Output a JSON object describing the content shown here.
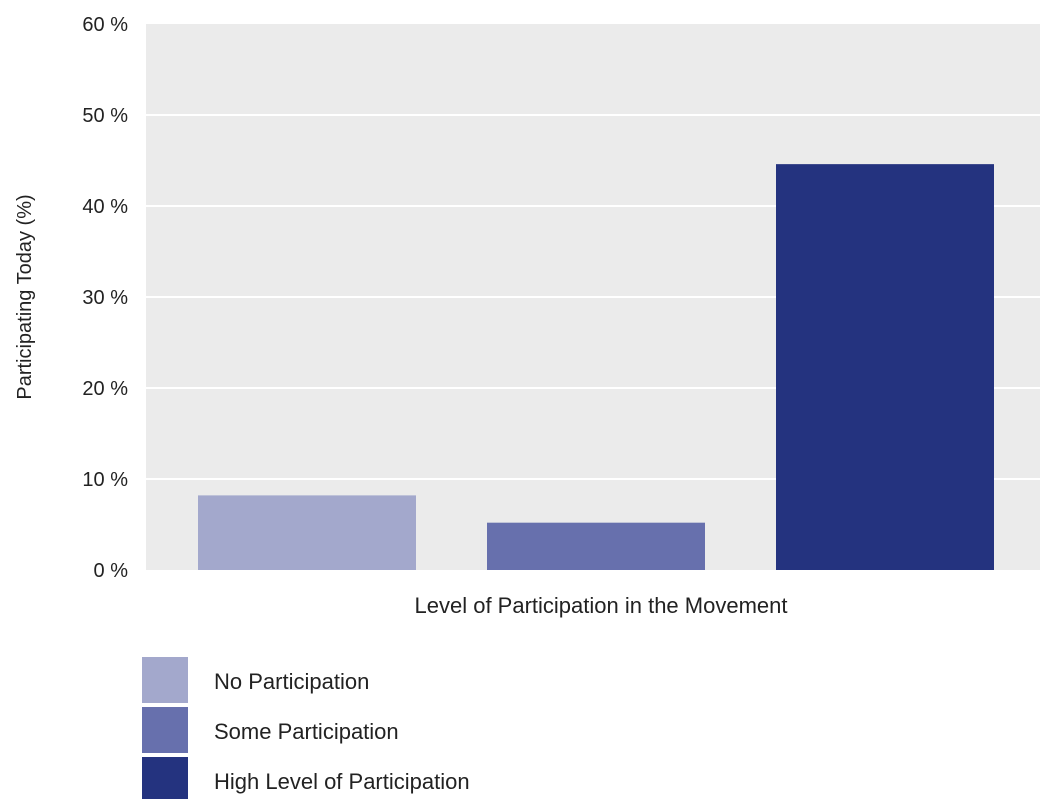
{
  "chart_data": {
    "type": "bar",
    "title": "",
    "xlabel": "Level of Participation in the Movement",
    "ylabel": "Participating Today (%)",
    "ylim": [
      0,
      60
    ],
    "yticks": [
      0,
      10,
      20,
      30,
      40,
      50,
      60
    ],
    "ytick_labels": [
      "0 %",
      "10 %",
      "20 %",
      "30 %",
      "40 %",
      "50 %",
      "60 %"
    ],
    "grid": true,
    "legend_position": "bottom-left",
    "categories": [
      "No Participation",
      "Some Participation",
      "High Level of Participation"
    ],
    "values": [
      8.2,
      5.2,
      44.6
    ],
    "colors": [
      "#a3a8cc",
      "#6770ad",
      "#24337f"
    ]
  },
  "colors": {
    "plot_background": "#ebebeb",
    "gridline": "#ffffff",
    "text": "#222222"
  }
}
